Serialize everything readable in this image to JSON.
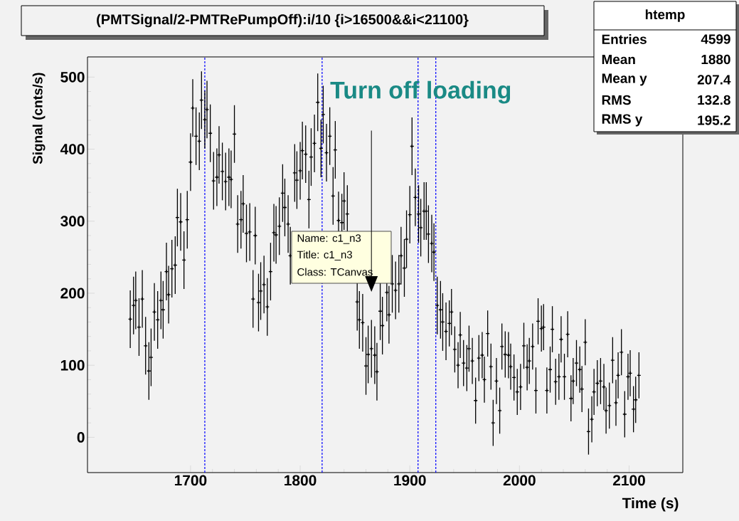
{
  "chart_data": {
    "type": "scatter",
    "title": "(PMTSignal/2-PMTRePumpOff):i/10 {i>16500&&i<21100}",
    "xlabel": "Time (s)",
    "ylabel": "Signal (cnts/s)",
    "color": "#000000",
    "marker": "cross",
    "xlim": [
      1606,
      2149
    ],
    "ylim": [
      -49,
      528
    ],
    "xticks": [
      1700,
      1800,
      1900,
      2000,
      2100
    ],
    "yticks": [
      0,
      100,
      200,
      300,
      400,
      500
    ],
    "x": [
      1645,
      1648,
      1650,
      1653,
      1656,
      1659,
      1662,
      1664,
      1667,
      1670,
      1673,
      1675,
      1678,
      1680,
      1683,
      1686,
      1688,
      1691,
      1694,
      1697,
      1700,
      1702,
      1705,
      1708,
      1710,
      1713,
      1715,
      1718,
      1721,
      1724,
      1726,
      1729,
      1732,
      1735,
      1737,
      1740,
      1743,
      1746,
      1748,
      1751,
      1754,
      1757,
      1759,
      1762,
      1764,
      1767,
      1770,
      1773,
      1776,
      1778,
      1781,
      1784,
      1786,
      1789,
      1791,
      1795,
      1797,
      1800,
      1802,
      1805,
      1808,
      1810,
      1813,
      1816,
      1819,
      1821,
      1824,
      1827,
      1830,
      1832,
      1835,
      1838,
      1840,
      1843,
      1852,
      1854,
      1857,
      1860,
      1862,
      1865,
      1868,
      1870,
      1873,
      1875,
      1879,
      1881,
      1884,
      1887,
      1890,
      1892,
      1895,
      1897,
      1900,
      1902,
      1905,
      1908,
      1910,
      1913,
      1915,
      1917,
      1920,
      1922,
      1925,
      1928,
      1930,
      1933,
      1936,
      1938,
      1941,
      1944,
      1946,
      1949,
      1952,
      1954,
      1957,
      1960,
      1963,
      1966,
      1968,
      1971,
      1974,
      1976,
      1979,
      1982,
      1984,
      1987,
      1990,
      1992,
      1995,
      1998,
      2001,
      2004,
      2007,
      2009,
      2012,
      2015,
      2017,
      2020,
      2022,
      2025,
      2028,
      2030,
      2033,
      2036,
      2038,
      2041,
      2044,
      2047,
      2049,
      2052,
      2055,
      2057,
      2060,
      2063,
      2066,
      2068,
      2071,
      2074,
      2077,
      2079,
      2082,
      2085,
      2088,
      2090,
      2093,
      2096,
      2099,
      2101,
      2104,
      2106,
      2109
    ],
    "values": [
      164,
      183,
      190,
      153,
      192,
      127,
      92,
      111,
      174,
      163,
      190,
      177,
      230,
      198,
      234,
      239,
      305,
      299,
      246,
      302,
      382,
      457,
      418,
      411,
      468,
      441,
      455,
      422,
      356,
      361,
      392,
      369,
      355,
      361,
      358,
      421,
      296,
      302,
      324,
      283,
      285,
      192,
      280,
      187,
      203,
      212,
      181,
      230,
      284,
      281,
      293,
      339,
      319,
      296,
      252,
      367,
      357,
      370,
      398,
      393,
      330,
      389,
      408,
      465,
      401,
      448,
      395,
      418,
      335,
      399,
      301,
      298,
      328,
      310,
      188,
      163,
      159,
      99,
      115,
      123,
      114,
      91,
      175,
      155,
      201,
      170,
      213,
      204,
      213,
      252,
      235,
      275,
      309,
      404,
      333,
      310,
      291,
      314,
      314,
      282,
      269,
      257,
      183,
      177,
      160,
      147,
      158,
      174,
      122,
      100,
      142,
      103,
      96,
      123,
      106,
      51,
      110,
      114,
      80,
      144,
      98,
      20,
      78,
      37,
      126,
      115,
      114,
      98,
      83,
      63,
      70,
      127,
      97,
      106,
      126,
      65,
      161,
      151,
      153,
      65,
      94,
      150,
      77,
      84,
      136,
      84,
      143,
      54,
      78,
      103,
      94,
      67,
      132,
      8,
      25,
      63,
      75,
      78,
      70,
      37,
      44,
      107,
      48,
      86,
      118,
      32,
      84,
      89,
      39,
      52,
      86
    ],
    "errors": [
      40,
      40,
      40,
      40,
      40,
      40,
      40,
      40,
      40,
      40,
      40,
      40,
      40,
      40,
      40,
      40,
      40,
      40,
      40,
      40,
      40,
      40,
      40,
      40,
      40,
      40,
      40,
      40,
      40,
      40,
      40,
      40,
      40,
      40,
      40,
      40,
      40,
      40,
      40,
      40,
      40,
      40,
      40,
      40,
      40,
      40,
      40,
      40,
      40,
      40,
      40,
      40,
      40,
      40,
      40,
      40,
      40,
      40,
      40,
      40,
      40,
      40,
      40,
      40,
      40,
      40,
      40,
      40,
      40,
      40,
      40,
      40,
      40,
      40,
      40,
      40,
      40,
      40,
      40,
      40,
      40,
      40,
      40,
      40,
      40,
      40,
      40,
      40,
      40,
      40,
      40,
      40,
      40,
      40,
      40,
      40,
      40,
      40,
      40,
      40,
      40,
      40,
      40,
      40,
      40,
      40,
      32,
      32,
      32,
      32,
      32,
      32,
      32,
      32,
      32,
      32,
      32,
      32,
      32,
      32,
      32,
      32,
      32,
      32,
      32,
      32,
      32,
      32,
      32,
      32,
      32,
      32,
      32,
      32,
      32,
      32,
      32,
      32,
      32,
      32,
      32,
      32,
      32,
      32,
      32,
      32,
      32,
      32,
      32,
      32,
      32,
      32,
      32,
      32,
      32,
      32,
      32,
      32,
      32,
      32,
      32,
      32,
      32,
      32,
      32,
      32,
      32,
      32,
      32,
      32,
      32
    ],
    "ref_lines": [
      {
        "axis": "x",
        "value": 1713,
        "color": "#0000ff",
        "line_style": "dashed"
      },
      {
        "axis": "x",
        "value": 1820,
        "color": "#0000ff",
        "line_style": "dashed"
      },
      {
        "axis": "x",
        "value": 1907.5,
        "color": "#0000ff",
        "line_style": "dashed"
      },
      {
        "axis": "x",
        "value": 1923.7,
        "color": "#0000ff",
        "line_style": "dashed"
      }
    ],
    "annotations": [
      "Turn off loading",
      "Name: c1_n3",
      "Title:   c1_n3",
      "Class: TCanvas",
      "htemp",
      "Entries",
      "4599",
      "Mean",
      "1880",
      "Mean y",
      "207.4",
      "RMS",
      "132.8",
      "RMS y",
      "195.2"
    ]
  }
}
